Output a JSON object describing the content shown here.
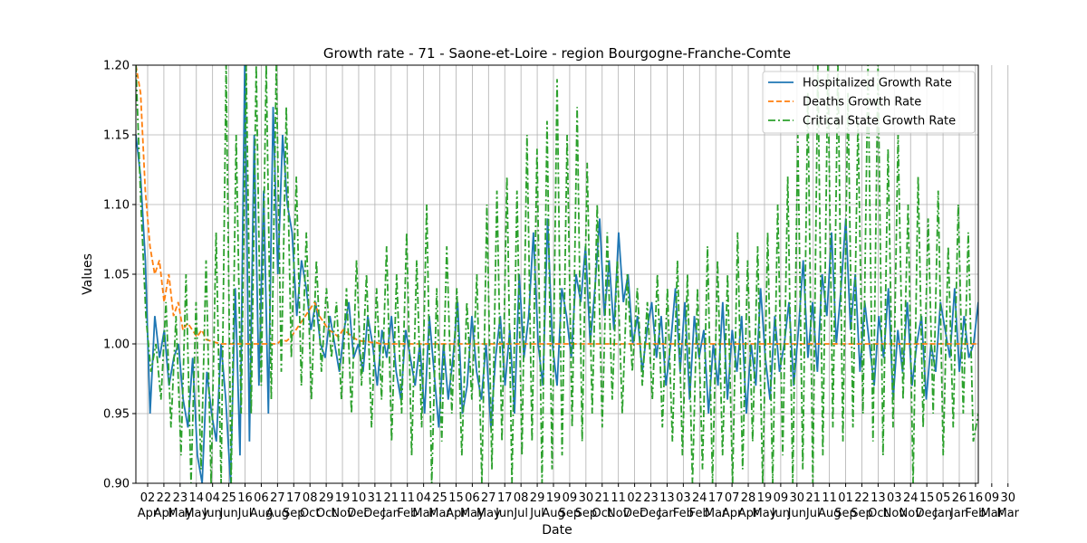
{
  "chart_data": {
    "type": "line",
    "title": "Growth rate - 71 - Saone-et-Loire - region Bourgogne-Franche-Comte",
    "xlabel": "Date",
    "ylabel": "Values",
    "ylim": [
      0.9,
      1.2
    ],
    "yticks": [
      "0.90",
      "0.95",
      "1.00",
      "1.05",
      "1.10",
      "1.15",
      "1.20"
    ],
    "grid": true,
    "legend_position": "top-right",
    "x_tick_labels": [
      {
        "day": "02",
        "month": "Apr"
      },
      {
        "day": "22",
        "month": "Apr"
      },
      {
        "day": "23",
        "month": "May"
      },
      {
        "day": "14",
        "month": "May"
      },
      {
        "day": "04",
        "month": "Jun"
      },
      {
        "day": "25",
        "month": "Jun"
      },
      {
        "day": "16",
        "month": "Jul"
      },
      {
        "day": "06",
        "month": "Aug"
      },
      {
        "day": "27",
        "month": "Aug"
      },
      {
        "day": "17",
        "month": "Sep"
      },
      {
        "day": "08",
        "month": "Oct"
      },
      {
        "day": "29",
        "month": "Oct"
      },
      {
        "day": "19",
        "month": "Nov"
      },
      {
        "day": "10",
        "month": "Dec"
      },
      {
        "day": "31",
        "month": "Dec"
      },
      {
        "day": "21",
        "month": "Jan"
      },
      {
        "day": "11",
        "month": "Feb"
      },
      {
        "day": "04",
        "month": "Mar"
      },
      {
        "day": "25",
        "month": "Mar"
      },
      {
        "day": "15",
        "month": "Apr"
      },
      {
        "day": "06",
        "month": "May"
      },
      {
        "day": "27",
        "month": "May"
      },
      {
        "day": "17",
        "month": "Jun"
      },
      {
        "day": "08",
        "month": "Jul"
      },
      {
        "day": "29",
        "month": "Jul"
      },
      {
        "day": "19",
        "month": "Aug"
      },
      {
        "day": "09",
        "month": "Sep"
      },
      {
        "day": "30",
        "month": "Sep"
      },
      {
        "day": "21",
        "month": "Oct"
      },
      {
        "day": "11",
        "month": "Nov"
      },
      {
        "day": "02",
        "month": "Dec"
      },
      {
        "day": "23",
        "month": "Dec"
      },
      {
        "day": "13",
        "month": "Jan"
      },
      {
        "day": "03",
        "month": "Feb"
      },
      {
        "day": "24",
        "month": "Feb"
      },
      {
        "day": "17",
        "month": "Mar"
      },
      {
        "day": "07",
        "month": "Apr"
      },
      {
        "day": "28",
        "month": "Apr"
      },
      {
        "day": "19",
        "month": "May"
      },
      {
        "day": "09",
        "month": "Jun"
      },
      {
        "day": "30",
        "month": "Jun"
      },
      {
        "day": "21",
        "month": "Jul"
      },
      {
        "day": "11",
        "month": "Aug"
      },
      {
        "day": "01",
        "month": "Sep"
      },
      {
        "day": "22",
        "month": "Sep"
      },
      {
        "day": "13",
        "month": "Oct"
      },
      {
        "day": "03",
        "month": "Nov"
      },
      {
        "day": "24",
        "month": "Nov"
      },
      {
        "day": "15",
        "month": "Dec"
      },
      {
        "day": "05",
        "month": "Jan"
      },
      {
        "day": "26",
        "month": "Jan"
      },
      {
        "day": "16",
        "month": "Feb"
      },
      {
        "day": "09",
        "month": "Mar"
      },
      {
        "day": "30",
        "month": "Mar"
      }
    ],
    "series": [
      {
        "name": "Hospitalized Growth Rate",
        "color": "#1f77b4",
        "style": "solid",
        "values": [
          1.15,
          1.12,
          1.06,
          0.95,
          1.02,
          0.99,
          1.01,
          0.97,
          0.99,
          1.0,
          0.96,
          0.94,
          0.99,
          0.92,
          0.9,
          0.98,
          0.95,
          0.93,
          1.0,
          0.96,
          0.9,
          1.04,
          0.92,
          1.2,
          0.93,
          1.15,
          0.97,
          1.11,
          0.95,
          1.17,
          1.05,
          1.15,
          1.1,
          1.08,
          1.02,
          1.06,
          1.04,
          1.01,
          1.03,
          1.0,
          0.99,
          1.02,
          1.0,
          0.98,
          1.01,
          1.03,
          0.99,
          1.0,
          0.98,
          1.02,
          1.0,
          0.97,
          1.01,
          0.99,
          1.02,
          0.98,
          0.96,
          1.01,
          0.99,
          0.97,
          1.0,
          0.95,
          1.02,
          0.98,
          0.94,
          1.0,
          0.96,
          0.99,
          1.03,
          0.95,
          0.97,
          1.02,
          0.98,
          0.96,
          1.0,
          0.94,
          0.99,
          1.02,
          0.97,
          1.01,
          0.95,
          1.05,
          0.99,
          1.02,
          1.08,
          1.0,
          0.97,
          1.09,
          1.0,
          0.97,
          1.04,
          1.02,
          0.99,
          1.05,
          1.03,
          1.07,
          1.0,
          1.04,
          1.09,
          1.02,
          1.06,
          1.01,
          1.08,
          1.03,
          1.05,
          1.0,
          1.02,
          0.98,
          1.01,
          1.03,
          0.99,
          1.02,
          0.97,
          1.0,
          1.04,
          0.98,
          1.03,
          0.96,
          1.02,
          0.99,
          1.01,
          0.95,
          1.0,
          0.97,
          1.03,
          0.96,
          1.01,
          0.98,
          1.02,
          0.95,
          1.0,
          0.97,
          1.04,
          0.99,
          0.96,
          1.02,
          0.98,
          1.0,
          1.03,
          0.97,
          1.01,
          1.06,
          0.99,
          1.03,
          0.98,
          1.05,
          1.02,
          1.08,
          1.0,
          1.04,
          1.09,
          1.01,
          1.05,
          0.98,
          1.03,
          1.0,
          0.97,
          1.02,
          0.99,
          1.04,
          0.96,
          1.01,
          0.98,
          1.03,
          0.97,
          1.0,
          1.02,
          0.96,
          1.0,
          0.98,
          1.03,
          1.01,
          0.99,
          1.04,
          0.98,
          1.02,
          0.99,
          1.0,
          1.03
        ]
      },
      {
        "name": "Deaths Growth Rate",
        "color": "#ff7f0e",
        "style": "dashed",
        "values": [
          1.2,
          1.18,
          1.11,
          1.07,
          1.05,
          1.06,
          1.03,
          1.05,
          1.02,
          1.03,
          1.01,
          1.015,
          1.01,
          1.005,
          1.01,
          1.003,
          1.002,
          1.001,
          1.0,
          1.0,
          1.0,
          1.0,
          1.0,
          1.0,
          1.0,
          1.0,
          1.0,
          1.0,
          1.0,
          1.0,
          1.0,
          1.003,
          1.002,
          1.005,
          1.01,
          1.015,
          1.02,
          1.025,
          1.03,
          1.02,
          1.015,
          1.01,
          1.008,
          1.005,
          1.01,
          1.008,
          1.005,
          1.003,
          1.002,
          1.002,
          1.001,
          1.001,
          1.0,
          1.0,
          1.0,
          1.0,
          1.0,
          1.0,
          1.0,
          1.0,
          1.0,
          1.0,
          1.0,
          1.0,
          1.0,
          1.0,
          1.0,
          1.0,
          1.0,
          1.0,
          1.0,
          1.0,
          1.0,
          1.0,
          1.0,
          1.0,
          1.0,
          1.0,
          1.0,
          1.0,
          1.0,
          1.0,
          1.0,
          1.0,
          1.0,
          1.0,
          1.0,
          1.0,
          1.0,
          1.0,
          1.0,
          1.0,
          1.0,
          1.0,
          1.0,
          1.0,
          1.0,
          1.0,
          1.0,
          1.0,
          1.0,
          1.0,
          1.0,
          1.0,
          1.0,
          1.0,
          1.0,
          1.0,
          1.0,
          1.0,
          1.0,
          1.0,
          1.0,
          1.0,
          1.0,
          1.0,
          1.0,
          1.0,
          1.0,
          1.0,
          1.0,
          1.0,
          1.0,
          1.0,
          1.0,
          1.0,
          1.0,
          1.0,
          1.0,
          1.0,
          1.0,
          1.0,
          1.0,
          1.0,
          1.0,
          1.0,
          1.0,
          1.0,
          1.0,
          1.0,
          1.0,
          1.0,
          1.0,
          1.0,
          1.0,
          1.0,
          1.0,
          1.0,
          1.0,
          1.0,
          1.0,
          1.0,
          1.0,
          1.0,
          1.0,
          1.0,
          1.0,
          1.0,
          1.0,
          1.0,
          1.0,
          1.0,
          1.0,
          1.0,
          1.0,
          1.0,
          1.0,
          1.0,
          1.0,
          1.0,
          1.0,
          1.0,
          1.0,
          1.0,
          1.0,
          1.0,
          1.0,
          1.0,
          1.0,
          1.0
        ]
      },
      {
        "name": "Critical State Growth Rate",
        "color": "#2ca02c",
        "style": "dashdot",
        "values": [
          1.2,
          1.1,
          1.02,
          0.98,
          1.0,
          0.96,
          1.03,
          0.94,
          1.02,
          0.92,
          1.05,
          0.9,
          1.03,
          0.91,
          1.06,
          0.9,
          1.08,
          0.9,
          1.2,
          0.9,
          1.15,
          0.95,
          1.2,
          0.95,
          1.2,
          0.97,
          1.2,
          0.96,
          1.2,
          0.98,
          1.17,
          0.99,
          1.12,
          0.97,
          1.08,
          0.96,
          1.06,
          0.98,
          1.04,
          0.99,
          1.03,
          0.96,
          1.04,
          0.95,
          1.06,
          0.97,
          1.05,
          0.94,
          1.04,
          0.96,
          1.07,
          0.93,
          1.05,
          0.95,
          1.08,
          0.92,
          1.06,
          0.94,
          1.1,
          0.9,
          1.04,
          0.93,
          1.07,
          0.95,
          1.04,
          0.92,
          1.03,
          0.96,
          1.05,
          0.9,
          1.1,
          0.91,
          1.11,
          0.93,
          1.12,
          0.9,
          1.11,
          0.92,
          1.15,
          0.93,
          1.14,
          0.9,
          1.16,
          0.91,
          1.19,
          0.92,
          1.15,
          0.94,
          1.17,
          0.93,
          1.13,
          0.95,
          1.1,
          0.94,
          1.08,
          0.96,
          1.06,
          0.95,
          1.05,
          0.98,
          1.04,
          0.97,
          1.03,
          0.96,
          1.05,
          0.94,
          1.04,
          0.93,
          1.06,
          0.92,
          1.05,
          0.9,
          1.04,
          0.91,
          1.07,
          0.9,
          1.06,
          0.92,
          1.05,
          0.9,
          1.08,
          0.91,
          1.06,
          0.93,
          1.07,
          0.9,
          1.08,
          0.9,
          1.1,
          0.92,
          1.12,
          0.9,
          1.15,
          0.91,
          1.18,
          0.9,
          1.2,
          0.92,
          1.2,
          0.94,
          1.2,
          0.93,
          1.18,
          0.94,
          1.16,
          0.95,
          1.2,
          0.93,
          1.2,
          0.92,
          1.14,
          0.94,
          1.15,
          0.96,
          1.1,
          0.9,
          1.12,
          0.94,
          1.09,
          0.95,
          1.11,
          0.92,
          1.07,
          0.94,
          1.1,
          0.95,
          1.08,
          0.93,
          0.95
        ]
      }
    ]
  }
}
